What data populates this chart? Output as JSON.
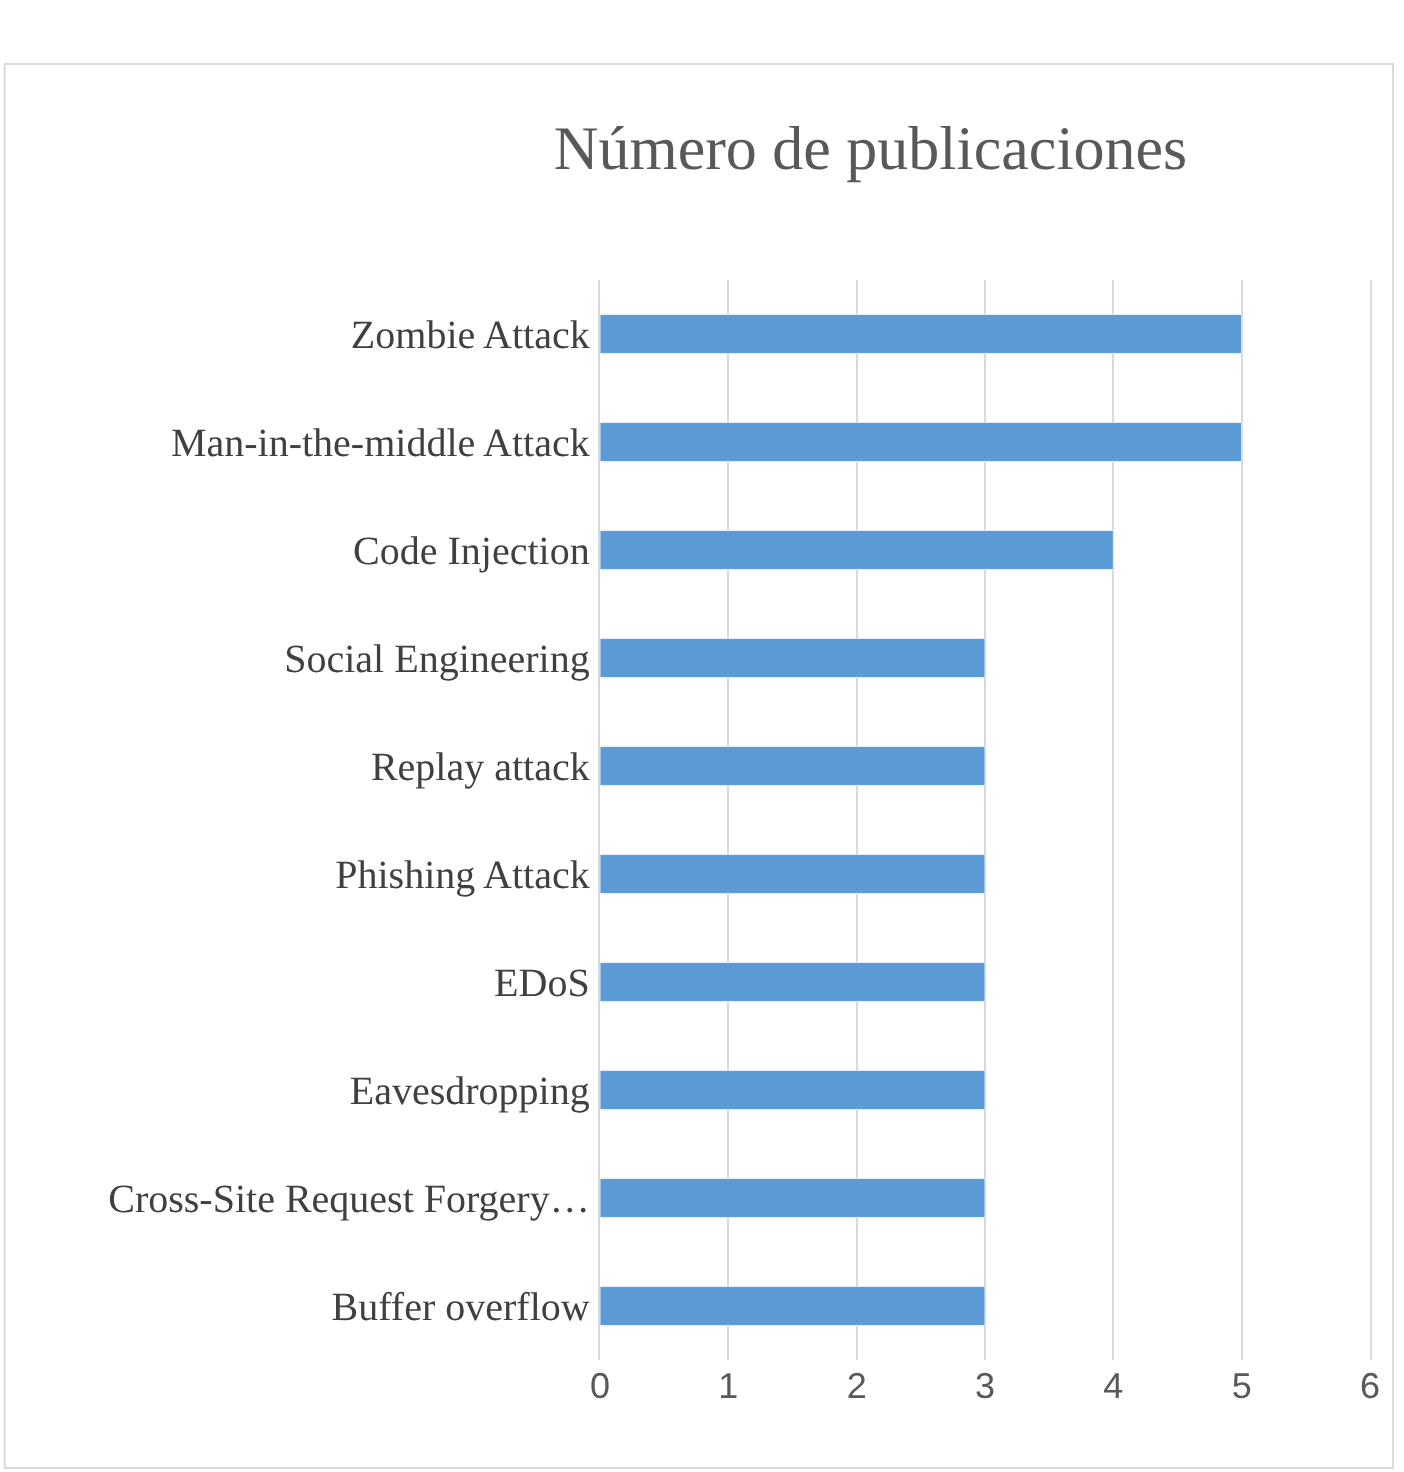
{
  "chart_data": {
    "type": "bar",
    "orientation": "horizontal",
    "title": "Número de publicaciones",
    "categories": [
      "Zombie Attack",
      "Man-in-the-middle Attack",
      "Code Injection",
      "Social Engineering",
      "Replay attack",
      "Phishing Attack",
      "EDoS",
      "Eavesdropping",
      "Cross-Site Request Forgery…",
      "Buffer overflow"
    ],
    "values": [
      5,
      5,
      4,
      3,
      3,
      3,
      3,
      3,
      3,
      3
    ],
    "color": "#5b9bd5",
    "xlim": [
      0,
      6
    ],
    "xticks": [
      0,
      1,
      2,
      3,
      4,
      5,
      6
    ],
    "grid": "x"
  }
}
